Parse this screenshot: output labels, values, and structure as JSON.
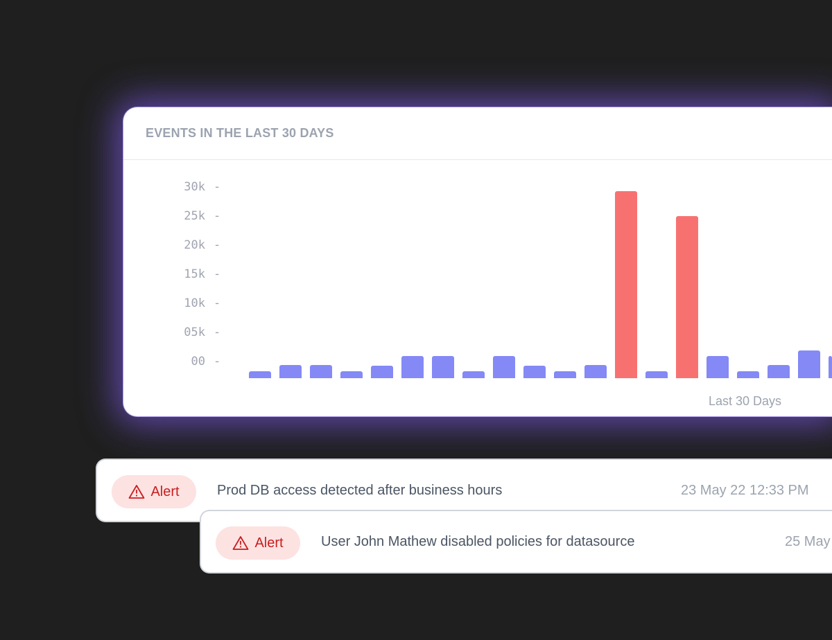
{
  "card": {
    "title": "EVENTS IN THE LAST 30 DAYS"
  },
  "chart_data": {
    "type": "bar",
    "title": "EVENTS IN THE LAST 30 DAYS",
    "xlabel": "Last 30 Days",
    "ylabel": "",
    "ylim": [
      0,
      30000
    ],
    "yticks": [
      "30k",
      "25k",
      "20k",
      "15k",
      "10k",
      "05k",
      "00"
    ],
    "values": [
      1200,
      2300,
      2300,
      1200,
      2100,
      3800,
      3800,
      1200,
      3800,
      2100,
      1200,
      2300,
      32100,
      1200,
      27900,
      3800,
      1200,
      2300,
      4800,
      3800
    ],
    "highlight": [
      false,
      false,
      false,
      false,
      false,
      false,
      false,
      false,
      false,
      false,
      false,
      false,
      true,
      false,
      true,
      false,
      false,
      false,
      false,
      false
    ],
    "colors": {
      "normal": "#8489f5",
      "highlight": "#f87171"
    }
  },
  "alerts": [
    {
      "badge": "Alert",
      "message": "Prod DB access detected after business hours",
      "date": "23 May 22 12:33 PM"
    },
    {
      "badge": "Alert",
      "message": "User John Mathew disabled policies for datasource",
      "date": "25 May"
    }
  ]
}
